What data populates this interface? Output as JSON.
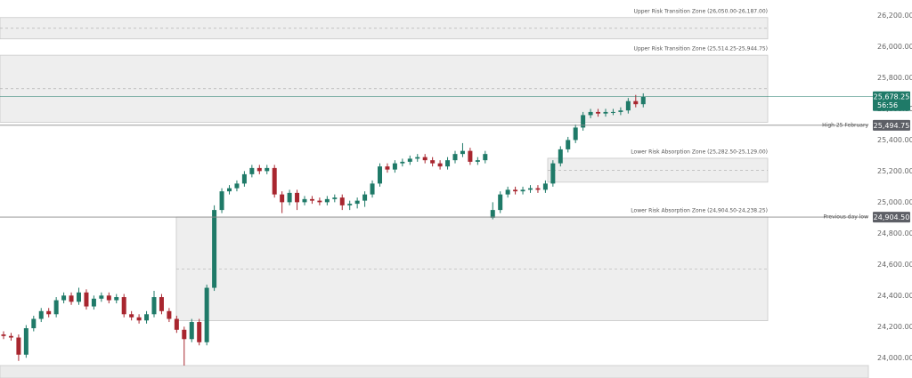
{
  "chart_data": {
    "type": "candlestick",
    "ylim": [
      23870,
      26300
    ],
    "yticks": [
      {
        "value": 26200,
        "label": "26,200.00"
      },
      {
        "value": 26000,
        "label": "26,000.00"
      },
      {
        "value": 25800,
        "label": "25,800.00"
      },
      {
        "value": 25600,
        "label": "25,600.00"
      },
      {
        "value": 25400,
        "label": "25,400.00"
      },
      {
        "value": 25200,
        "label": "25,200.00"
      },
      {
        "value": 25000,
        "label": "25,000.00"
      },
      {
        "value": 24800,
        "label": "24,800.00"
      },
      {
        "value": 24600,
        "label": "24,600.00"
      },
      {
        "value": 24400,
        "label": "24,400.00"
      },
      {
        "value": 24200,
        "label": "24,200.00"
      },
      {
        "value": 24000,
        "label": "24,000.00"
      }
    ],
    "up_color": "#1f7a68",
    "down_color": "#a8262f",
    "open": [
      24150,
      24140,
      24130,
      24020,
      24190,
      24250,
      24300,
      24280,
      24370,
      24400,
      24360,
      24420,
      24330,
      24380,
      24400,
      24370,
      24390,
      24280,
      24260,
      24240,
      24280,
      24390,
      24300,
      24250,
      24180,
      24120,
      24230,
      24100,
      24450,
      24950,
      25070,
      25090,
      25120,
      25180,
      25220,
      25200,
      25220,
      25050,
      25000,
      25060,
      25000,
      25020,
      25010,
      25000,
      25020,
      25030,
      24980,
      24990,
      25010,
      25050,
      25120,
      25230,
      25210,
      25250,
      25260,
      25280,
      25290,
      25270,
      25250,
      25230,
      25270,
      25310,
      25330,
      25260,
      25270,
      24900,
      24950,
      25050,
      25080,
      25070,
      25080,
      25090,
      25080,
      25120,
      25250,
      25340,
      25400,
      25480,
      25560,
      25580,
      25570,
      25580,
      25580,
      25590,
      25650,
      25630
    ],
    "high": [
      24170,
      24160,
      24150,
      24210,
      24270,
      24320,
      24320,
      24390,
      24420,
      24420,
      24450,
      24440,
      24400,
      24420,
      24420,
      24410,
      24410,
      24300,
      24280,
      24300,
      24430,
      24410,
      24320,
      24270,
      24200,
      24250,
      24250,
      24470,
      24980,
      25090,
      25110,
      25140,
      25200,
      25240,
      25240,
      25240,
      25240,
      25070,
      25080,
      25080,
      25040,
      25040,
      25030,
      25040,
      25050,
      25050,
      25010,
      25030,
      25070,
      25140,
      25250,
      25250,
      25270,
      25280,
      25300,
      25310,
      25310,
      25290,
      25270,
      25290,
      25330,
      25380,
      25350,
      25290,
      25330,
      25000,
      25070,
      25100,
      25100,
      25100,
      25110,
      25110,
      25140,
      25270,
      25360,
      25420,
      25500,
      25580,
      25600,
      25600,
      25600,
      25600,
      25610,
      25670,
      25690,
      25700
    ],
    "low": [
      24120,
      24110,
      23980,
      24000,
      24170,
      24230,
      24260,
      24260,
      24350,
      24340,
      24340,
      24310,
      24310,
      24360,
      24350,
      24350,
      24260,
      24240,
      24220,
      24220,
      24260,
      24280,
      24230,
      24160,
      23950,
      24100,
      24080,
      24080,
      24430,
      24930,
      25050,
      25070,
      25100,
      25160,
      25180,
      25180,
      25030,
      24930,
      24980,
      24950,
      24980,
      24990,
      24980,
      24980,
      25000,
      24950,
      24950,
      24960,
      24970,
      25030,
      25100,
      25190,
      25190,
      25230,
      25240,
      25260,
      25250,
      25230,
      25210,
      25210,
      25250,
      25290,
      25240,
      25240,
      25250,
      24890,
      24930,
      25030,
      25050,
      25050,
      25060,
      25060,
      25060,
      25100,
      25230,
      25320,
      25380,
      25460,
      25540,
      25550,
      25550,
      25560,
      25560,
      25570,
      25610,
      25610
    ],
    "close": [
      24140,
      24130,
      24020,
      24190,
      24250,
      24300,
      24280,
      24370,
      24400,
      24360,
      24420,
      24330,
      24380,
      24400,
      24370,
      24390,
      24280,
      24260,
      24240,
      24280,
      24390,
      24300,
      24250,
      24180,
      24120,
      24230,
      24100,
      24450,
      24950,
      25070,
      25090,
      25120,
      25180,
      25220,
      25200,
      25220,
      25050,
      25000,
      25060,
      25000,
      25020,
      25010,
      25000,
      25020,
      25030,
      24980,
      24990,
      25010,
      25050,
      25120,
      25230,
      25210,
      25250,
      25260,
      25280,
      25290,
      25270,
      25250,
      25230,
      25270,
      25310,
      25330,
      25260,
      25270,
      25310,
      24950,
      25050,
      25080,
      25070,
      25080,
      25090,
      25080,
      25120,
      25250,
      25340,
      25400,
      25480,
      25560,
      25580,
      25570,
      25580,
      25580,
      25590,
      25650,
      25630,
      25678.25
    ],
    "zones": [
      {
        "label": "Upper Risk Transition Zone (26,050.00-26,187.00)",
        "low": 26050,
        "high": 26187
      },
      {
        "label": "Upper Risk Transition Zone (25,514.25-25,944.75)",
        "low": 25514.25,
        "high": 25944.75
      },
      {
        "label": "Lower Risk Absorption Zone (25,282.50-25,129.00)",
        "low": 25129,
        "high": 25282.5
      },
      {
        "label": "Lower Risk Absorption Zone (24,904.50-24,238.25)",
        "low": 24238.25,
        "high": 24904.5
      }
    ],
    "levels": [
      {
        "label": "High 25 February",
        "value": 25494.75,
        "value_label": "25,494.75"
      },
      {
        "label": "Previous day low",
        "value": 24904.5,
        "value_label": "24,904.50"
      }
    ],
    "last_price": {
      "value": 25678.25,
      "value_label": "25,678.25",
      "countdown": "56:56"
    }
  }
}
